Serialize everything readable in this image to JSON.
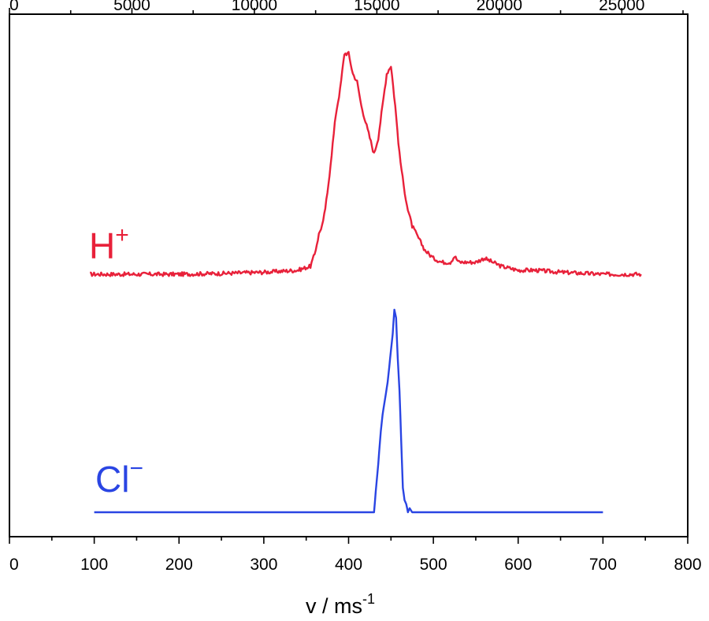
{
  "chart_data": {
    "type": "line",
    "title": "",
    "xlabel": {
      "main": "v / ms",
      "exp": "-1"
    },
    "bottom_axis": {
      "xlim": [
        0,
        800
      ],
      "major_ticks": [
        0,
        100,
        200,
        300,
        400,
        500,
        600,
        700,
        800
      ],
      "tick_labels": [
        "0",
        "100",
        "200",
        "300",
        "400",
        "500",
        "600",
        "700",
        "800"
      ],
      "minor_step": 50
    },
    "top_axis": {
      "xlim": [
        0,
        27692
      ],
      "major_ticks": [
        0,
        5000,
        10000,
        15000,
        20000,
        25000
      ],
      "tick_labels": [
        "0",
        "5000",
        "10000",
        "15000",
        "20000",
        "25000"
      ],
      "minor_step": 2500
    },
    "ylim": [
      0,
      1.1
    ],
    "grid": false,
    "y_tick_labels_shown": false,
    "series": [
      {
        "name": "H+",
        "label_main": "H",
        "label_sup": "+",
        "color": "#e8213a",
        "baseline": 0.5,
        "x": [
          95,
          150,
          200,
          250,
          300,
          340,
          355,
          360,
          365,
          370,
          375,
          380,
          385,
          390,
          395,
          400,
          405,
          410,
          415,
          420,
          425,
          430,
          435,
          440,
          445,
          450,
          455,
          460,
          465,
          470,
          475,
          480,
          485,
          490,
          500,
          510,
          520,
          525,
          530,
          540,
          550,
          560,
          570,
          580,
          590,
          600,
          620,
          650,
          700,
          745
        ],
        "y": [
          0.5,
          0.5,
          0.5,
          0.502,
          0.505,
          0.51,
          0.52,
          0.55,
          0.6,
          0.63,
          0.7,
          0.8,
          0.9,
          0.96,
          1.05,
          1.05,
          1.0,
          0.98,
          0.92,
          0.88,
          0.84,
          0.8,
          0.84,
          0.92,
          1.0,
          1.02,
          0.92,
          0.8,
          0.72,
          0.66,
          0.62,
          0.6,
          0.58,
          0.56,
          0.54,
          0.53,
          0.53,
          0.545,
          0.53,
          0.53,
          0.53,
          0.54,
          0.53,
          0.52,
          0.515,
          0.51,
          0.51,
          0.505,
          0.5,
          0.5
        ],
        "noise": 0.005
      },
      {
        "name": "Cl−",
        "label_main": "Cl",
        "label_sup": "−",
        "color": "#2a45e3",
        "baseline": 0.0,
        "x": [
          100,
          200,
          300,
          400,
          425,
          430,
          432,
          435,
          438,
          440,
          443,
          446,
          449,
          452,
          454,
          456,
          458,
          460,
          462,
          464,
          466,
          468,
          470,
          472,
          475,
          480,
          500,
          600,
          700
        ],
        "y": [
          0.0,
          0.0,
          0.0,
          0.0,
          0.0,
          0.0,
          0.05,
          0.12,
          0.2,
          0.24,
          0.28,
          0.32,
          0.38,
          0.44,
          0.5,
          0.48,
          0.38,
          0.3,
          0.18,
          0.06,
          0.03,
          0.02,
          0.0,
          0.01,
          0.0,
          0.0,
          0.0,
          0.0,
          0.0
        ],
        "noise": 0.0
      }
    ]
  }
}
